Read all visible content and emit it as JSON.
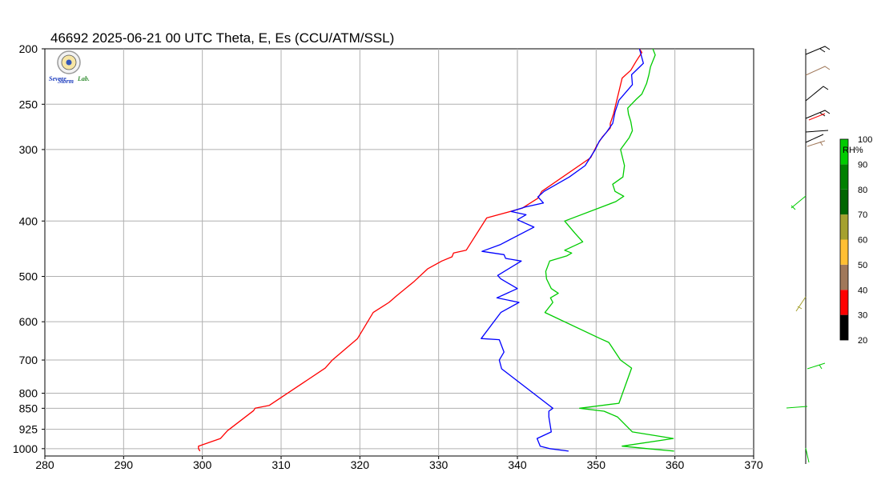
{
  "chart_data": {
    "type": "line",
    "title": "46692  2025-06-21 00 UTC  Theta, E, Es (CCU/ATM/SSL)",
    "xlim": [
      280,
      370
    ],
    "x_ticks": [
      280,
      290,
      300,
      310,
      320,
      330,
      340,
      350,
      360,
      370
    ],
    "y_scale": "log (pressure, inverted)",
    "ylim": [
      200,
      1030
    ],
    "y_ticks": [
      200,
      250,
      300,
      400,
      500,
      600,
      700,
      800,
      850,
      925,
      1000
    ],
    "grid": true,
    "series": [
      {
        "color": "#ff0000",
        "points": [
          [
            299.7,
            1010
          ],
          [
            299.5,
            1000
          ],
          [
            299.5,
            990
          ],
          [
            302.3,
            960
          ],
          [
            303.2,
            930
          ],
          [
            306.5,
            858
          ],
          [
            306.7,
            850
          ],
          [
            308.5,
            840
          ],
          [
            315.6,
            723
          ],
          [
            316.5,
            700
          ],
          [
            319.7,
            642
          ],
          [
            321.7,
            578
          ],
          [
            323.7,
            555
          ],
          [
            324.7,
            540
          ],
          [
            326.9,
            510
          ],
          [
            328.6,
            485
          ],
          [
            330.4,
            470
          ],
          [
            331.7,
            462
          ],
          [
            331.9,
            455
          ],
          [
            333.5,
            450
          ],
          [
            336.1,
            395
          ],
          [
            340.6,
            380
          ],
          [
            342.6,
            365
          ],
          [
            343.1,
            355
          ],
          [
            349.3,
            310
          ],
          [
            350.1,
            295
          ],
          [
            350.8,
            285
          ],
          [
            351.8,
            275
          ],
          [
            351.8,
            270
          ],
          [
            352.2,
            260
          ],
          [
            353.3,
            225
          ],
          [
            354.4,
            218
          ],
          [
            355.1,
            210
          ],
          [
            355.8,
            203
          ],
          [
            355.5,
            200
          ]
        ]
      },
      {
        "color": "#0000ff",
        "points": [
          [
            346.5,
            1010
          ],
          [
            344.1,
            1000
          ],
          [
            342.9,
            990
          ],
          [
            342.5,
            960
          ],
          [
            344.3,
            935
          ],
          [
            344.0,
            880
          ],
          [
            344.0,
            860
          ],
          [
            344.5,
            850
          ],
          [
            338.0,
            725
          ],
          [
            337.7,
            700
          ],
          [
            338.3,
            678
          ],
          [
            337.7,
            645
          ],
          [
            335.4,
            642
          ],
          [
            337.9,
            578
          ],
          [
            340.2,
            555
          ],
          [
            337.4,
            545
          ],
          [
            340.0,
            525
          ],
          [
            337.9,
            505
          ],
          [
            337.5,
            498
          ],
          [
            340.5,
            470
          ],
          [
            338.5,
            465
          ],
          [
            338.3,
            458
          ],
          [
            335.5,
            452
          ],
          [
            337.8,
            440
          ],
          [
            342.1,
            410
          ],
          [
            340.0,
            398
          ],
          [
            341.1,
            390
          ],
          [
            339.2,
            385
          ],
          [
            341.0,
            378
          ],
          [
            343.3,
            372
          ],
          [
            342.6,
            363
          ],
          [
            343.4,
            355
          ],
          [
            346.6,
            335
          ],
          [
            348.6,
            320
          ],
          [
            349.9,
            300
          ],
          [
            350.4,
            290
          ],
          [
            351.3,
            280
          ],
          [
            352.1,
            270
          ],
          [
            352.4,
            258
          ],
          [
            352.9,
            246
          ],
          [
            354.6,
            231
          ],
          [
            354.5,
            222
          ],
          [
            356.0,
            212
          ],
          [
            355.5,
            200
          ]
        ]
      },
      {
        "color": "#00cc00",
        "points": [
          [
            359.9,
            1010
          ],
          [
            356.5,
            1000
          ],
          [
            353.3,
            990
          ],
          [
            359.8,
            960
          ],
          [
            354.6,
            935
          ],
          [
            352.7,
            880
          ],
          [
            351.0,
            860
          ],
          [
            347.9,
            850
          ],
          [
            352.9,
            833
          ],
          [
            354.5,
            723
          ],
          [
            353.1,
            700
          ],
          [
            351.6,
            652
          ],
          [
            350.5,
            642
          ],
          [
            343.5,
            578
          ],
          [
            344.5,
            555
          ],
          [
            344.2,
            545
          ],
          [
            345.2,
            535
          ],
          [
            344.3,
            525
          ],
          [
            343.7,
            505
          ],
          [
            343.6,
            490
          ],
          [
            344.1,
            470
          ],
          [
            346.3,
            460
          ],
          [
            346.9,
            455
          ],
          [
            346.0,
            450
          ],
          [
            348.3,
            435
          ],
          [
            347.3,
            420
          ],
          [
            346.0,
            400
          ],
          [
            352.5,
            370
          ],
          [
            353.5,
            362
          ],
          [
            352.4,
            355
          ],
          [
            352.1,
            345
          ],
          [
            353.4,
            335
          ],
          [
            353.6,
            320
          ],
          [
            353.1,
            300
          ],
          [
            354.2,
            286
          ],
          [
            354.6,
            278
          ],
          [
            354.4,
            268
          ],
          [
            354.1,
            260
          ],
          [
            354.0,
            254
          ],
          [
            355.1,
            245
          ],
          [
            355.8,
            240
          ],
          [
            356.4,
            230
          ],
          [
            356.7,
            222
          ],
          [
            356.9,
            215
          ],
          [
            357.5,
            205
          ],
          [
            357.2,
            200
          ]
        ]
      }
    ]
  },
  "colorbar": {
    "label": "RH%",
    "tick_labels": [
      "20",
      "30",
      "40",
      "50",
      "60",
      "70",
      "80",
      "90",
      "100"
    ],
    "colors": [
      "#000000",
      "#ff0000",
      "#a0785a",
      "#ffbf33",
      "#a5a12f",
      "#006600",
      "#008000",
      "#00cc00",
      "#0000ff"
    ]
  },
  "logo": {
    "line1": "Severe",
    "line2": "Storm",
    "line3": "Lab."
  }
}
